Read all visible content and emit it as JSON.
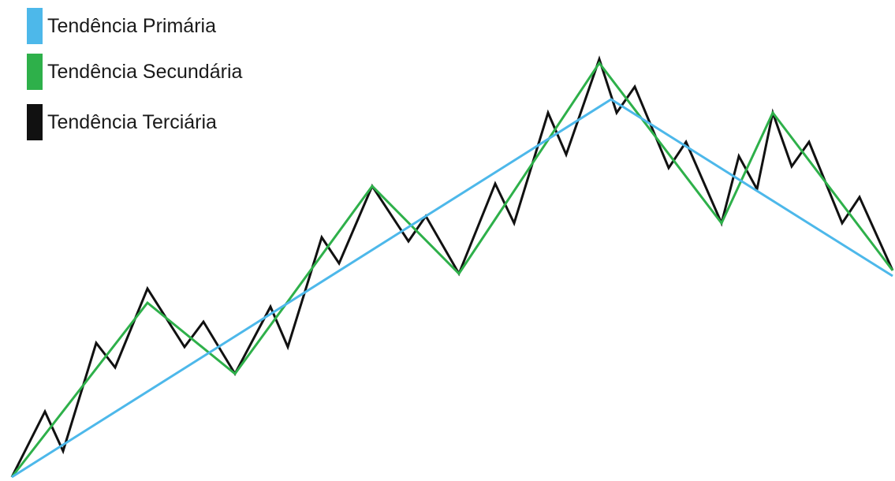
{
  "legend": [
    {
      "label": "Tendência Primária",
      "color": "#4db8ea"
    },
    {
      "label": "Tendência Secundária",
      "color": "#2eb04a"
    },
    {
      "label": "Tendência Terciária",
      "color": "#111111"
    }
  ]
}
